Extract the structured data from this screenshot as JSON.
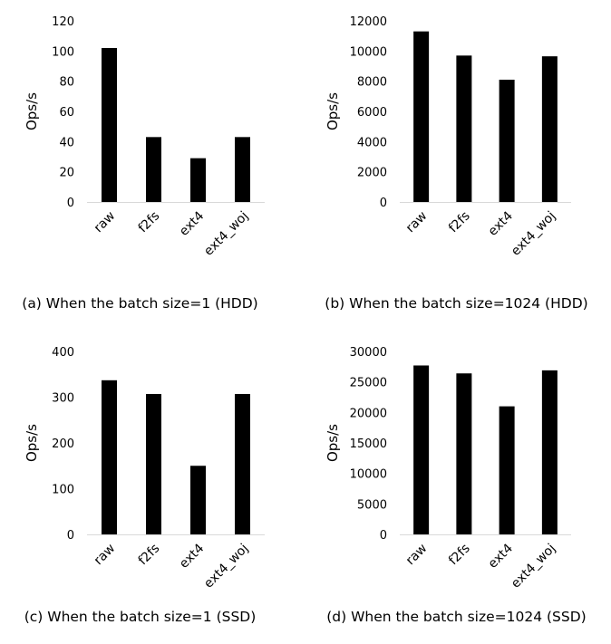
{
  "chart_data": [
    {
      "type": "bar",
      "caption": "(a) When the batch size=1 (HDD)",
      "ylabel": "Ops/s",
      "categories": [
        "raw",
        "f2fs",
        "ext4",
        "ext4_woj"
      ],
      "values": [
        102,
        43,
        29,
        43
      ],
      "ylim": [
        0,
        120
      ],
      "yticks": [
        0,
        20,
        40,
        60,
        80,
        100,
        120
      ],
      "bar_color": "#000000",
      "grid": false,
      "legend": false
    },
    {
      "type": "bar",
      "caption": "(b) When the batch size=1024 (HDD)",
      "ylabel": "Ops/s",
      "categories": [
        "raw",
        "f2fs",
        "ext4",
        "ext4_woj"
      ],
      "values": [
        11300,
        9700,
        8100,
        9650
      ],
      "ylim": [
        0,
        12000
      ],
      "yticks": [
        0,
        2000,
        4000,
        6000,
        8000,
        10000,
        12000
      ],
      "bar_color": "#000000",
      "grid": false,
      "legend": false
    },
    {
      "type": "bar",
      "caption": "(c) When the batch size=1 (SSD)",
      "ylabel": "Ops/s",
      "categories": [
        "raw",
        "f2fs",
        "ext4",
        "ext4_woj"
      ],
      "values": [
        337,
        307,
        150,
        307
      ],
      "ylim": [
        0,
        400
      ],
      "yticks": [
        0,
        100,
        200,
        300,
        400
      ],
      "bar_color": "#000000",
      "grid": false,
      "legend": false
    },
    {
      "type": "bar",
      "caption": "(d) When the batch size=1024 (SSD)",
      "ylabel": "Ops/s",
      "categories": [
        "raw",
        "f2fs",
        "ext4",
        "ext4_woj"
      ],
      "values": [
        27700,
        26400,
        21000,
        26900
      ],
      "ylim": [
        0,
        30000
      ],
      "yticks": [
        0,
        5000,
        10000,
        15000,
        20000,
        25000,
        30000
      ],
      "bar_color": "#000000",
      "grid": false,
      "legend": false
    }
  ]
}
